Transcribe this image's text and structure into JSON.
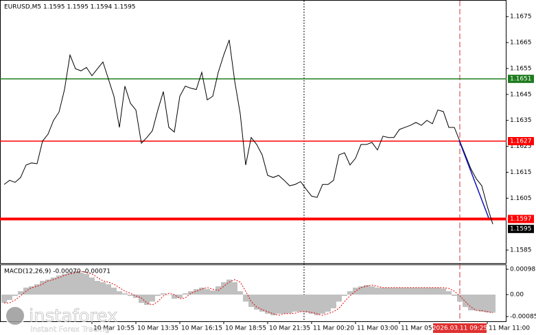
{
  "chart_data": [
    {
      "type": "line",
      "title": "EURUSD,M5  1.1595 1.1595 1.1594 1.1595",
      "color": "#000000",
      "categories": [
        null,
        null,
        null,
        null,
        null,
        null,
        null,
        null,
        null,
        null,
        null,
        null,
        null,
        null,
        null,
        null,
        "10 Mar 10:55",
        null,
        null,
        null,
        null,
        null,
        null,
        null,
        "10 Mar 13:35",
        null,
        null,
        null,
        null,
        null,
        null,
        null,
        "10 Mar 16:15",
        null,
        null,
        null,
        null,
        null,
        null,
        null,
        "10 Mar 18:55",
        null,
        null,
        null,
        null,
        null,
        null,
        null,
        "10 Mar 21:35",
        null,
        null,
        null,
        null,
        null,
        null,
        null,
        "11 Mar 00:20",
        null,
        null,
        null,
        null,
        null,
        null,
        null,
        "11 Mar 03:00",
        null,
        null,
        null,
        null,
        null,
        null,
        null,
        "11 Mar 05:40",
        null,
        null,
        null,
        null,
        null,
        null,
        null,
        null,
        null,
        null,
        "2026.03.11 09:25",
        null,
        null,
        null,
        null,
        "11 Mar 11:00",
        null
      ],
      "values": [
        1.16103,
        1.16119,
        1.16111,
        1.1613,
        1.16178,
        1.16186,
        1.16183,
        1.1627,
        1.16297,
        1.1635,
        1.16382,
        1.16469,
        1.16602,
        1.16549,
        1.16541,
        1.16554,
        1.16522,
        1.16549,
        1.16575,
        1.16509,
        1.16443,
        1.16323,
        1.16482,
        1.16416,
        1.1639,
        1.16262,
        1.16284,
        1.1631,
        1.1639,
        1.16461,
        1.16323,
        1.16305,
        1.16443,
        1.16482,
        1.16474,
        1.16469,
        1.16535,
        1.16429,
        1.16443,
        1.16535,
        1.16602,
        1.1666,
        1.16501,
        1.16376,
        1.16178,
        1.16284,
        1.16257,
        1.16217,
        1.16138,
        1.1613,
        1.16138,
        1.16119,
        1.16098,
        1.16103,
        1.16114,
        1.16085,
        1.16058,
        1.16053,
        1.16103,
        1.16103,
        1.16119,
        1.16217,
        1.16225,
        1.16178,
        1.16204,
        1.16257,
        1.16257,
        1.16265,
        1.16236,
        1.16289,
        1.16284,
        1.16284,
        1.16315,
        1.16323,
        1.16331,
        1.16342,
        1.16331,
        1.1635,
        1.16337,
        1.1639,
        1.16384,
        1.16323,
        1.16323,
        1.1627,
        1.16217,
        1.16164,
        1.16125,
        1.16098,
        1.16019,
        1.1595
      ],
      "ylim": [
        1.158,
        1.16814
      ],
      "yticks": [
        1.1585,
        1.1605,
        1.1615,
        1.1625,
        1.1635,
        1.1645,
        1.1655,
        1.1665,
        1.1675
      ],
      "levels": [
        {
          "value": 1.1651,
          "color": "#1e7b1e"
        },
        {
          "value": 1.1627,
          "color": "#ff0000"
        },
        {
          "value": 1.1597,
          "color": "#ff0000"
        }
      ],
      "last_price": 1.1595
    },
    {
      "type": "macd",
      "title": "MACD(12,26,9) -0.00070 -0.00071",
      "color": "#c0c0c0",
      "signal_color": "#e00000",
      "values": [
        -0.00032,
        -0.00021,
        -5e-05,
        0.00013,
        0.00027,
        0.00032,
        0.0004,
        0.00053,
        0.00058,
        0.00066,
        0.00074,
        0.0008,
        0.00085,
        0.0009,
        0.00085,
        0.0008,
        0.00066,
        0.00053,
        0.00048,
        0.0004,
        0.00027,
        0.00013,
        5e-05,
        -5e-05,
        -0.00013,
        -0.00032,
        -0.0004,
        -0.00027,
        -5e-05,
        5e-05,
        0,
        -0.00016,
        -0.00013,
        5e-05,
        0.00013,
        0.00021,
        0.00027,
        0.00021,
        0.00016,
        0.00032,
        0.00048,
        0.00058,
        0.00048,
        0.00013,
        -0.00027,
        -0.00048,
        -0.00058,
        -0.00066,
        -0.00074,
        -0.0008,
        -0.00074,
        -0.00074,
        -0.00072,
        -0.00066,
        -0.00066,
        -0.00069,
        -0.00074,
        -0.0008,
        -0.00074,
        -0.00066,
        -0.00053,
        -0.00027,
        -5e-05,
        0.00013,
        0.00027,
        0.00032,
        0.00037,
        0.00032,
        0.00027,
        0.00027,
        0.00027,
        0.00027,
        0.00027,
        0.00027,
        0.00027,
        0.00027,
        0.00027,
        0.00027,
        0.00027,
        0.00027,
        0.00024,
        0.00013,
        -5e-05,
        -0.00027,
        -0.00048,
        -0.00061,
        -0.00062,
        -0.00066,
        -0.00069,
        -0.0007
      ],
      "signal": [
        -0.00032,
        -0.00032,
        -0.00021,
        -5e-05,
        0.00013,
        0.00027,
        0.00032,
        0.0004,
        0.00053,
        0.00058,
        0.00066,
        0.00074,
        0.0008,
        0.00085,
        0.0009,
        0.00085,
        0.0008,
        0.00066,
        0.00053,
        0.00048,
        0.0004,
        0.00027,
        0.00013,
        5e-05,
        -5e-05,
        -0.00013,
        -0.00032,
        -0.0004,
        -0.00027,
        -5e-05,
        5e-05,
        0,
        -0.00016,
        -0.00013,
        5e-05,
        0.00013,
        0.00021,
        0.00027,
        0.00021,
        0.00016,
        0.00032,
        0.00048,
        0.00058,
        0.00048,
        0.00013,
        -0.00027,
        -0.00048,
        -0.00058,
        -0.00066,
        -0.00074,
        -0.0008,
        -0.00074,
        -0.00074,
        -0.00072,
        -0.00066,
        -0.00066,
        -0.00069,
        -0.00074,
        -0.0008,
        -0.00074,
        -0.00066,
        -0.00053,
        -0.00027,
        -5e-05,
        0.00013,
        0.00027,
        0.00032,
        0.00037,
        0.00032,
        0.00027,
        0.00027,
        0.00027,
        0.00027,
        0.00027,
        0.00027,
        0.00027,
        0.00027,
        0.00027,
        0.00027,
        0.00027,
        0.00027,
        0.00024,
        0.00013,
        -5e-05,
        -0.00027,
        -0.00048,
        -0.00061,
        -0.00062,
        -0.00066,
        -0.00071
      ],
      "ylim": [
        -0.00106,
        0.00114
      ],
      "yticks": [
        -0.00085,
        {
          "value": 0,
          "label": "0.00"
        },
        0.00098
      ]
    }
  ],
  "watermark": {
    "brand": "instaforex",
    "slogan": "Instant Forex Trading"
  }
}
